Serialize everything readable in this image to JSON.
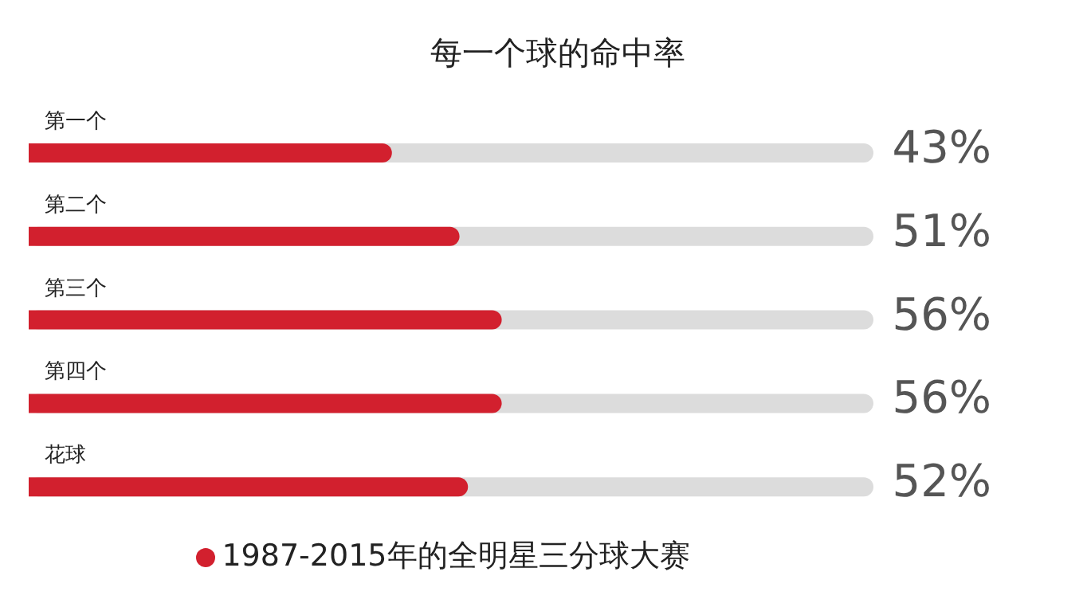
{
  "chart_data": {
    "type": "bar",
    "orientation": "horizontal",
    "title": "每一个球的命中率",
    "categories": [
      "第一个",
      "第二个",
      "第三个",
      "第四个",
      "花球"
    ],
    "series": [
      {
        "name": "1987-2015年的全明星三分球大赛",
        "color": "#d2202e",
        "values": [
          43,
          51,
          56,
          56,
          52
        ],
        "value_labels": [
          "43%",
          "51%",
          "56%",
          "56%",
          "52%"
        ]
      }
    ],
    "xlim": [
      0,
      100
    ],
    "tick_labels": false,
    "grid": false,
    "legend": "bottom"
  }
}
